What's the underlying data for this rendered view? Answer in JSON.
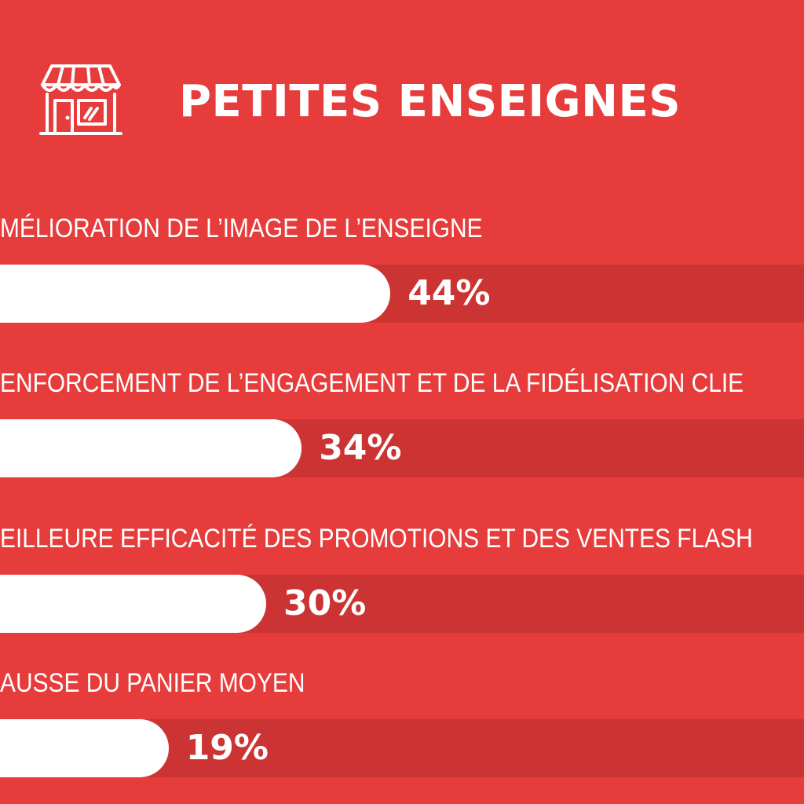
{
  "colors": {
    "background": "#e73c3c",
    "track": "#cc3434",
    "bar": "#ffffff",
    "text": "#ffffff"
  },
  "header": {
    "icon": "storefront-icon"
  },
  "chart_data": {
    "type": "bar",
    "orientation": "horizontal",
    "title": "PETITES ENSEIGNES",
    "xlim": [
      0,
      100
    ],
    "grid": false,
    "categories": [
      "MÉLIORATION DE L’IMAGE DE L’ENSEIGNE",
      "ENFORCEMENT DE L’ENGAGEMENT ET DE LA FIDÉLISATION CLIE",
      "EILLEURE EFFICACITÉ DES PROMOTIONS ET DES VENTES FLASH",
      "AUSSE DU PANIER MOYEN"
    ],
    "values": [
      44,
      34,
      30,
      19
    ],
    "value_labels": [
      "44%",
      "34%",
      "30%",
      "19%"
    ]
  }
}
